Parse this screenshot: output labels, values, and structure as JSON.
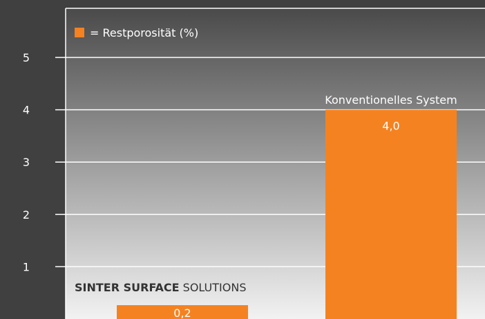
{
  "chart_data": {
    "type": "bar",
    "categories": [
      "SINTER SURFACE SOLUTIONS",
      "Konventionelles System"
    ],
    "category_labels": [
      {
        "bold": "SINTER SURFACE",
        "regular": " SOLUTIONS"
      },
      {
        "bold": "",
        "regular": "Konventionelles System"
      }
    ],
    "values": [
      0.2,
      4.0
    ],
    "value_labels": [
      "0,2",
      "4,0"
    ],
    "yticks": [
      1,
      2,
      3,
      4,
      5
    ],
    "ylim": [
      0,
      5.95
    ],
    "legend": {
      "marker_label": "= Restporosität (%)",
      "placement": "top-left"
    },
    "grid": true
  },
  "colors": {
    "bar": "#f58220",
    "background_outer": "#404040",
    "plot_top": "#4a4a4a",
    "plot_bottom": "#f2f2f2",
    "grid": "#ffffff",
    "brand_text": "#333333"
  }
}
